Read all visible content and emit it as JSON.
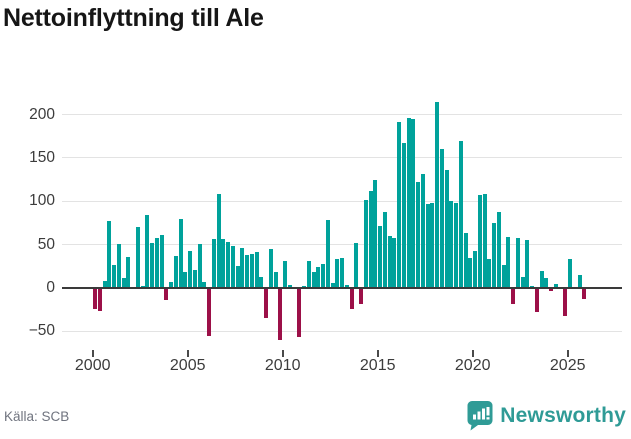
{
  "title": "Nettoinflyttning till Ale",
  "source": "Källa: SCB",
  "branding": {
    "name": "Newsworthy"
  },
  "colors": {
    "positive": "#00a29b",
    "negative": "#9c1048",
    "grid": "#e3e3e3",
    "axis": "#3a3a3a",
    "title_text": "#161616",
    "tick_text": "#3c3c3c",
    "source_text": "#70747f",
    "brand_teal": "#2f9b96"
  },
  "chart_data": {
    "type": "bar",
    "title": "Nettoinflyttning till Ale",
    "frequency": "quarterly",
    "start_period": "2000-Q1",
    "end_period": "2025-Q4",
    "xlabel": "",
    "ylabel": "",
    "ylim": [
      -75,
      230
    ],
    "grid": true,
    "y_ticks": [
      200,
      150,
      100,
      50,
      0,
      -50
    ],
    "y_tick_labels": [
      "200",
      "150",
      "100",
      "50",
      "0",
      "−50"
    ],
    "x_tick_years": [
      2000,
      2005,
      2010,
      2015,
      2020,
      2025
    ],
    "x_tick_labels": [
      "2000",
      "2005",
      "2010",
      "2015",
      "2020",
      "2025"
    ],
    "values": [
      -24,
      -26,
      8,
      77,
      26,
      51,
      11,
      36,
      0,
      70,
      2,
      84,
      52,
      58,
      61,
      -14,
      7,
      37,
      80,
      18,
      43,
      21,
      51,
      7,
      -55,
      57,
      108,
      56,
      53,
      48,
      25,
      46,
      38,
      39,
      42,
      13,
      -35,
      45,
      19,
      -60,
      31,
      4,
      0,
      -56,
      2,
      31,
      19,
      24,
      28,
      79,
      6,
      33,
      35,
      3,
      -24,
      52,
      -19,
      102,
      112,
      125,
      71,
      88,
      60,
      58,
      191,
      167,
      196,
      195,
      122,
      131,
      97,
      98,
      214,
      160,
      136,
      100,
      98,
      169,
      64,
      35,
      43,
      107,
      108,
      33,
      75,
      88,
      26,
      59,
      -18,
      58,
      13,
      55,
      2,
      -28,
      20,
      11,
      -4,
      5,
      0,
      -32,
      33,
      0,
      15,
      -13
    ],
    "source": "Källa: SCB"
  }
}
